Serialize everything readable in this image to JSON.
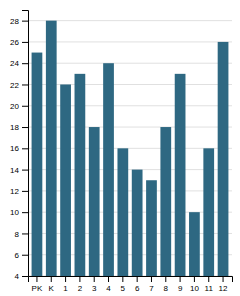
{
  "chart_data": {
    "type": "bar",
    "categories": [
      "PK",
      "K",
      "1",
      "2",
      "3",
      "4",
      "5",
      "6",
      "7",
      "8",
      "9",
      "10",
      "11",
      "12"
    ],
    "values": [
      25,
      28,
      22,
      23,
      18,
      24,
      16,
      14,
      13,
      18,
      23,
      10,
      16,
      26
    ],
    "color": "#2e6882",
    "ylim": [
      4,
      29
    ],
    "yticks": [
      4,
      6,
      8,
      10,
      12,
      14,
      16,
      18,
      20,
      22,
      24,
      26,
      28
    ],
    "grid": true
  }
}
